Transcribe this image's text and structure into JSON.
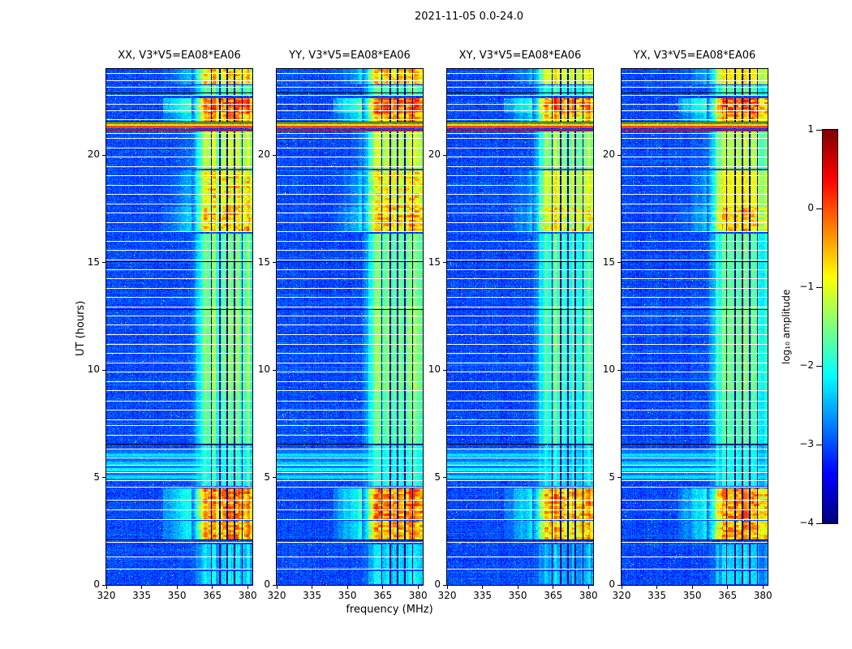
{
  "chart_data": {
    "type": "heatmap",
    "title": "2021-11-05 0.0-24.0",
    "xlabel": "frequency (MHz)",
    "ylabel": "UT (hours)",
    "colormap": "jet",
    "x_range": [
      320,
      382
    ],
    "x_ticks": [
      320,
      335,
      350,
      365,
      380
    ],
    "y_range": [
      0,
      24
    ],
    "y_ticks": [
      0,
      5,
      10,
      15,
      20
    ],
    "colorbar": {
      "label": "log₁₀ amplitude",
      "range": [
        -4,
        1
      ],
      "ticks": [
        1,
        0,
        -1,
        -2,
        -3,
        -4
      ]
    },
    "panels": [
      {
        "title": "XX, V3*V5=EA08*EA06",
        "seed": 11,
        "band_offset": 0
      },
      {
        "title": "YY, V3*V5=EA08*EA06",
        "seed": 23,
        "band_offset": 0
      },
      {
        "title": "XY, V3*V5=EA08*EA06",
        "seed": 37,
        "band_offset": -0.2
      },
      {
        "title": "YX, V3*V5=EA08*EA06",
        "seed": 51,
        "band_offset": -0.15
      }
    ],
    "background_level": -3.3,
    "rfi_band": {
      "freq_range": [
        358,
        382
      ],
      "dark_channels": [
        364.6,
        368.1,
        371.2,
        374.5,
        377.7
      ]
    },
    "band_intervals": [
      [
        0.05,
        0.65,
        -2.3
      ],
      [
        0.75,
        1.9,
        -2.4
      ],
      [
        2.1,
        3.0,
        -0.55
      ],
      [
        3.05,
        4.5,
        -0.4
      ],
      [
        4.6,
        6.5,
        -2.1
      ],
      [
        6.55,
        9.0,
        -1.75
      ],
      [
        9.0,
        13.0,
        -1.6
      ],
      [
        13.0,
        16.35,
        -1.7
      ],
      [
        16.45,
        17.6,
        -0.75
      ],
      [
        17.6,
        19.3,
        -0.95
      ],
      [
        19.35,
        21.08,
        -1.3
      ],
      [
        21.55,
        21.95,
        -0.6
      ],
      [
        21.95,
        22.65,
        -0.2
      ],
      [
        22.8,
        23.25,
        -1.8
      ],
      [
        23.3,
        24.0,
        -0.85
      ]
    ],
    "fullband_lines": [
      [
        21.12,
        21.22,
        0.55
      ],
      [
        21.24,
        21.34,
        0.05
      ],
      [
        21.36,
        21.44,
        -0.75
      ],
      [
        21.46,
        21.52,
        -1.3
      ]
    ],
    "cyan_stripes": [
      [
        4.85,
        6.35,
        -2.8
      ],
      [
        4.95,
        5.1,
        -2.3
      ],
      [
        5.27,
        5.45,
        -2.15
      ],
      [
        5.6,
        5.75,
        -2.4
      ],
      [
        5.95,
        6.1,
        -2.3
      ]
    ],
    "white_lines": [
      0.72,
      1.28,
      1.96,
      3.02,
      3.47,
      3.92,
      4.53,
      4.83,
      5.2,
      5.55,
      5.9,
      6.3,
      6.94,
      7.4,
      7.66,
      8.11,
      8.53,
      9.02,
      9.43,
      9.89,
      10.3,
      10.75,
      11.17,
      11.62,
      12.08,
      12.49,
      12.91,
      13.36,
      13.77,
      14.23,
      14.64,
      15.09,
      15.55,
      15.96,
      16.42,
      16.83,
      17.28,
      17.7,
      18.15,
      18.57,
      19.02,
      19.43,
      19.89,
      20.3,
      20.75,
      20.98,
      21.62,
      22.04,
      22.34,
      22.75,
      23.13,
      23.43,
      23.77
    ],
    "black_lines": [
      2.08,
      6.53,
      12.79,
      15.02,
      21.52,
      22.86
    ]
  }
}
